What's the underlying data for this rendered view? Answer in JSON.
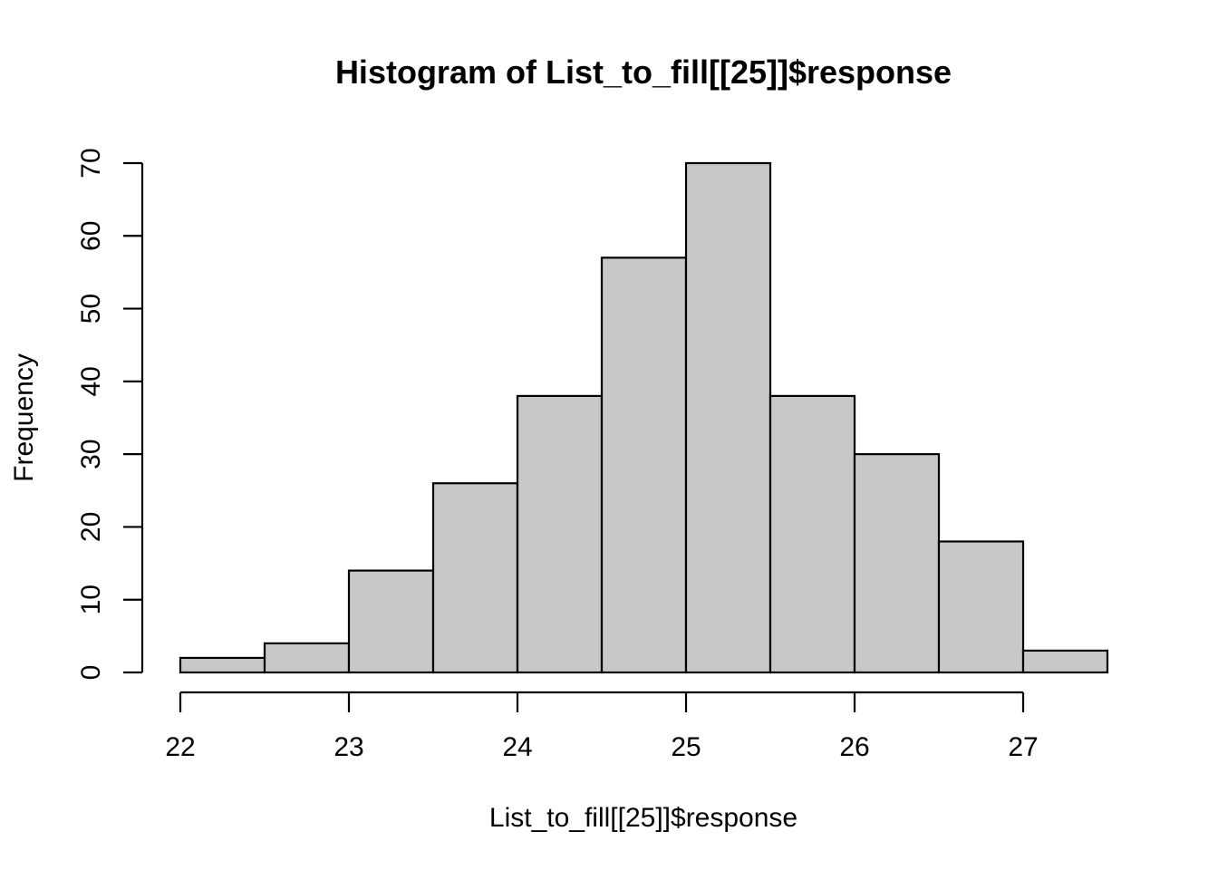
{
  "chart_data": {
    "type": "bar",
    "title": "Histogram of List_to_fill[[25]]$response",
    "xlabel": "List_to_fill[[25]]$response",
    "ylabel": "Frequency",
    "bins": [
      {
        "start": 22.0,
        "end": 22.5,
        "count": 2
      },
      {
        "start": 22.5,
        "end": 23.0,
        "count": 4
      },
      {
        "start": 23.0,
        "end": 23.5,
        "count": 14
      },
      {
        "start": 23.5,
        "end": 24.0,
        "count": 26
      },
      {
        "start": 24.0,
        "end": 24.5,
        "count": 38
      },
      {
        "start": 24.5,
        "end": 25.0,
        "count": 57
      },
      {
        "start": 25.0,
        "end": 25.5,
        "count": 70
      },
      {
        "start": 25.5,
        "end": 26.0,
        "count": 38
      },
      {
        "start": 26.0,
        "end": 26.5,
        "count": 30
      },
      {
        "start": 26.5,
        "end": 27.0,
        "count": 18
      },
      {
        "start": 27.0,
        "end": 27.5,
        "count": 3
      }
    ],
    "x_ticks": [
      "22",
      "23",
      "24",
      "25",
      "26",
      "27"
    ],
    "y_ticks": [
      "0",
      "10",
      "20",
      "30",
      "40",
      "50",
      "60",
      "70"
    ],
    "xlim": [
      22,
      27.5
    ],
    "ylim": [
      0,
      70
    ],
    "grid": false,
    "colors": {
      "bar_fill": "#c8c8c8",
      "bar_stroke": "#000000"
    }
  }
}
